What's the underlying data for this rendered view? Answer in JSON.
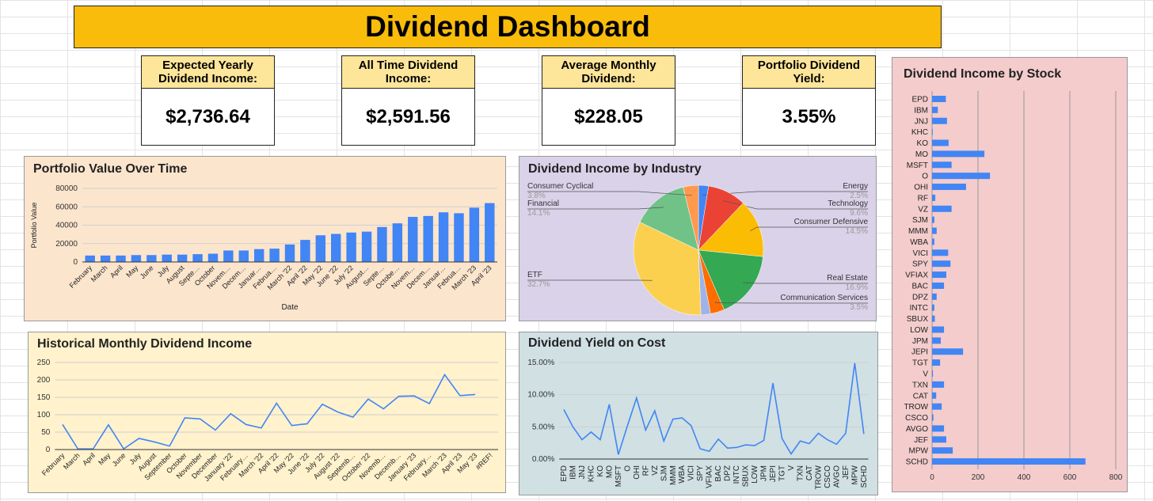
{
  "title": "Dividend Dashboard",
  "cards": [
    {
      "label": "Expected Yearly Dividend Income:",
      "value": "$2,736.64"
    },
    {
      "label": "All Time Dividend Income:",
      "value": "$2,591.56"
    },
    {
      "label": "Average Monthly Dividend:",
      "value": "$228.05"
    },
    {
      "label": "Portfolio Dividend Yield:",
      "value": "3.55%"
    }
  ],
  "chart_data": [
    {
      "type": "bar",
      "title": "Portfolio Value Over Time",
      "x_label": "Date",
      "y_label": "Portfolio Value",
      "categories": [
        "February",
        "March",
        "April",
        "May",
        "June",
        "July",
        "August",
        "Septe…",
        "October",
        "Novem…",
        "Decem…",
        "Januar…",
        "Februa…",
        "March '22",
        "April '22",
        "May '22",
        "June '22",
        "July '22",
        "August…",
        "Septe…",
        "Octobe…",
        "Novem…",
        "Decem…",
        "Januar…",
        "Februa…",
        "March '23",
        "April '23"
      ],
      "values": [
        7000,
        7000,
        7000,
        7500,
        7500,
        8000,
        8000,
        8500,
        9000,
        12500,
        12500,
        14000,
        14500,
        19000,
        24000,
        29000,
        30500,
        32000,
        33000,
        38000,
        42000,
        49000,
        50000,
        54000,
        53000,
        59000,
        64000
      ],
      "color": "#4285f4",
      "ylim": [
        0,
        80000
      ],
      "yticks": [
        0,
        20000,
        40000,
        60000,
        80000
      ],
      "grid": true
    },
    {
      "type": "pie",
      "title": "Dividend Income by Industry",
      "categories": [
        "Energy",
        "Technology",
        "Consumer Defensive",
        "Real Estate",
        "Communication Services",
        null,
        "ETF",
        "Financial",
        "Consumer Cyclical"
      ],
      "values": [
        2.5,
        9.6,
        14.5,
        16.9,
        3.5,
        2.4,
        32.7,
        14.1,
        3.8
      ],
      "value_labels": [
        "2.5%",
        "9.6%",
        "14.5%",
        "16.9%",
        "3.5%",
        null,
        "32.7%",
        "14.1%",
        "3.8%"
      ],
      "colors": [
        "#4285f4",
        "#ea4335",
        "#fbbc04",
        "#34a853",
        "#ff6d01",
        "#9fb4e6",
        "#fcd04f",
        "#71c287",
        "#ff994d"
      ]
    },
    {
      "type": "barh",
      "title": "Dividend Income by Stock",
      "categories": [
        "EPD",
        "IBM",
        "JNJ",
        "KHC",
        "KO",
        "MO",
        "MSFT",
        "O",
        "OHI",
        "RF",
        "VZ",
        "SJM",
        "MMM",
        "WBA",
        "VICI",
        "SPY",
        "VFIAX",
        "BAC",
        "DPZ",
        "INTC",
        "SBUX",
        "LOW",
        "JPM",
        "JEPI",
        "TGT",
        "V",
        "TXN",
        "CAT",
        "TROW",
        "CSCO",
        "AVGO",
        "JEF",
        "MPW",
        "SCHD"
      ],
      "values": [
        60,
        25,
        65,
        3,
        72,
        228,
        85,
        252,
        148,
        14,
        85,
        10,
        20,
        10,
        70,
        80,
        62,
        52,
        20,
        10,
        12,
        52,
        38,
        135,
        35,
        4,
        52,
        18,
        42,
        6,
        52,
        62,
        90,
        668
      ],
      "color": "#4285f4",
      "xlim": [
        0,
        800
      ],
      "xticks": [
        0,
        200,
        400,
        600,
        800
      ],
      "grid": true
    },
    {
      "type": "line",
      "title": "Historical Monthly Dividend Income",
      "categories": [
        "February",
        "March",
        "April",
        "May",
        "June",
        "July",
        "August",
        "September",
        "October",
        "November",
        "December",
        "January '22",
        "February…",
        "March '22",
        "April '22",
        "May '22",
        "June '22",
        "July '22",
        "August '22",
        "Septemb…",
        "October '22",
        "Novemb…",
        "Decemb…",
        "January '23",
        "February…",
        "March '23",
        "April '23",
        "May '23",
        "#REF!"
      ],
      "values": [
        72,
        2,
        2,
        71,
        2,
        32,
        22,
        10,
        91,
        88,
        56,
        103,
        72,
        62,
        133,
        69,
        74,
        130,
        108,
        93,
        145,
        117,
        153,
        154,
        132,
        215,
        155,
        158,
        null
      ],
      "color": "#4285f4",
      "ylim": [
        0,
        250
      ],
      "yticks": [
        0,
        50,
        100,
        150,
        200,
        250
      ],
      "grid": true
    },
    {
      "type": "line",
      "title": "Dividend Yield on Cost",
      "categories": [
        "EPD",
        "IBM",
        "JNJ",
        "KHC",
        "KO",
        "MO",
        "MSFT",
        "O",
        "OHI",
        "RF",
        "VZ",
        "SJM",
        "MMM",
        "WBA",
        "VICI",
        "SPY",
        "VFIAX",
        "BAC",
        "DPZ",
        "INTC",
        "SBUX",
        "LOW",
        "JPM",
        "JEPI",
        "TGT",
        "V",
        "TXN",
        "CAT",
        "TROW",
        "CSCO",
        "AVGO",
        "JEF",
        "MPW",
        "SCHD"
      ],
      "values": [
        7.7,
        5.0,
        3.0,
        4.2,
        3.0,
        8.5,
        0.7,
        5.2,
        9.5,
        4.5,
        7.5,
        2.8,
        6.2,
        6.4,
        5.2,
        1.6,
        1.2,
        3.1,
        1.7,
        1.8,
        2.2,
        2.1,
        2.9,
        11.8,
        3.2,
        0.8,
        2.8,
        2.4,
        4.0,
        3.0,
        2.3,
        4.0,
        14.9,
        3.9
      ],
      "color": "#4285f4",
      "ylim": [
        0,
        15
      ],
      "yticks": [
        {
          "value": 0,
          "label": "0.00%"
        },
        {
          "value": 5,
          "label": "5.00%"
        },
        {
          "value": 10,
          "label": "10.00%"
        },
        {
          "value": 15,
          "label": "15.00%"
        }
      ],
      "grid": true
    }
  ]
}
